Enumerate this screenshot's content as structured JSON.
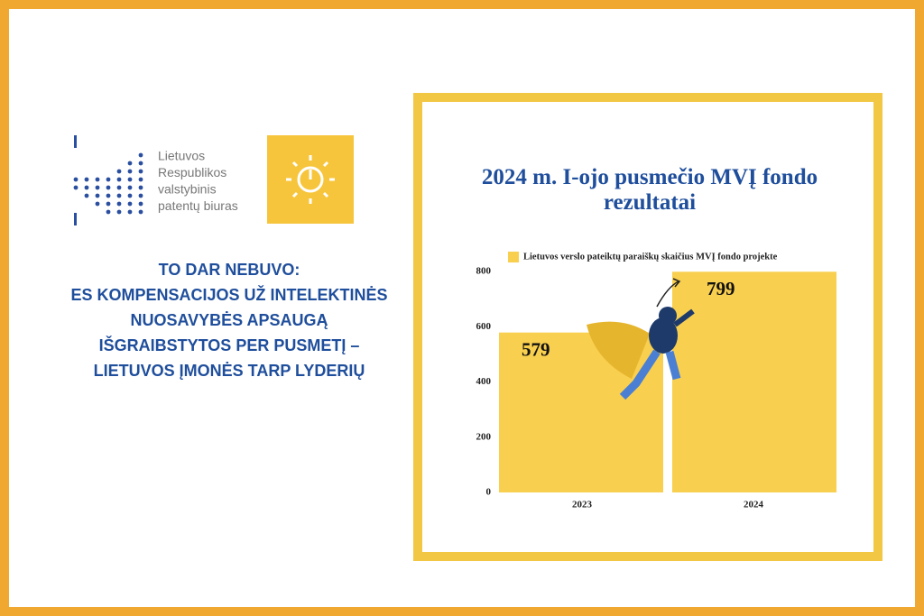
{
  "logo": {
    "lines": [
      "Lietuvos",
      "Respublikos",
      "valstybinis",
      "patentų biuras"
    ]
  },
  "headline": [
    "TO DAR NEBUVO:",
    "ES KOMPENSACIJOS UŽ INTELEKTINĖS",
    "NUOSAVYBĖS APSAUGĄ",
    "IŠGRAIBSTYTOS PER PUSMETĮ –",
    "LIETUVOS ĮMONĖS TARP LYDERIŲ"
  ],
  "chart_data": {
    "type": "bar",
    "title": "2024 m. I-ojo pusmečio MVĮ fondo rezultatai",
    "categories": [
      "2023",
      "2024"
    ],
    "series": [
      {
        "name": "Lietuvos verslo pateiktų paraiškų skaičius MVĮ fondo projekte",
        "color": "#f9cf4f",
        "values": [
          579,
          799
        ]
      }
    ],
    "ylim": [
      0,
      800
    ],
    "yticks": [
      0,
      200,
      400,
      600,
      800
    ],
    "grid": false
  }
}
